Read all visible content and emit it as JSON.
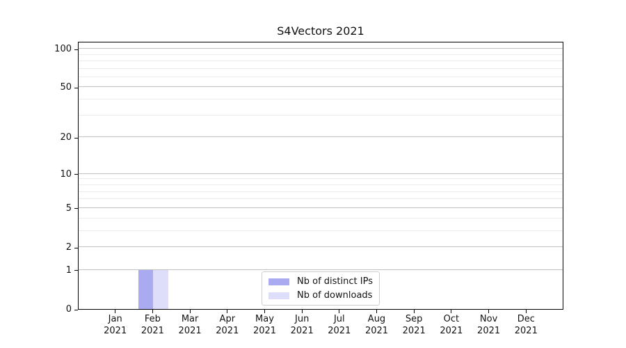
{
  "chart_data": {
    "type": "bar",
    "title": "S4Vectors 2021",
    "year_label": "2021",
    "categories": [
      "Jan",
      "Feb",
      "Mar",
      "Apr",
      "May",
      "Jun",
      "Jul",
      "Aug",
      "Sep",
      "Oct",
      "Nov",
      "Dec"
    ],
    "series": [
      {
        "name": "Nb of distinct IPs",
        "color": "#aaaaf0",
        "values": [
          0,
          1,
          0,
          0,
          0,
          0,
          0,
          0,
          0,
          0,
          0,
          0
        ]
      },
      {
        "name": "Nb of downloads",
        "color": "#dedefa",
        "values": [
          0,
          1,
          0,
          0,
          0,
          0,
          0,
          0,
          0,
          0,
          0,
          0
        ]
      }
    ],
    "yscale": "log1p",
    "ylim": [
      0,
      114.7
    ],
    "y_major_ticks": [
      0,
      1,
      2,
      5,
      10,
      20,
      50,
      100
    ],
    "y_minor_ticks": [
      3,
      4,
      6,
      7,
      8,
      9,
      30,
      40,
      60,
      70,
      80,
      90
    ],
    "grid": "horizontal-major-and-minor",
    "legend_position": "lower center",
    "axis_color": "#000000",
    "major_grid_color": "#bfbfbf",
    "minor_grid_color": "#ebebeb"
  }
}
